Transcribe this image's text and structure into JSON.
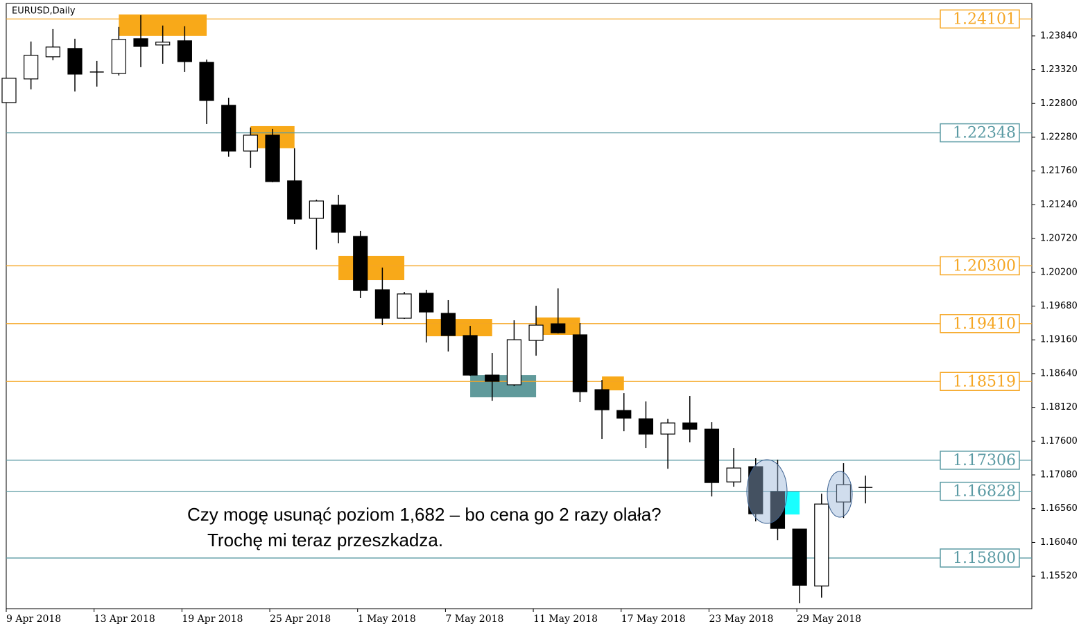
{
  "chart_data": {
    "type": "candlestick",
    "title": "EURUSD,Daily",
    "categories": [
      "9 Apr 2018",
      null,
      null,
      null,
      "13 Apr 2018",
      null,
      null,
      null,
      "19 Apr 2018",
      null,
      null,
      null,
      "25 Apr 2018",
      null,
      null,
      null,
      "1 May 2018",
      null,
      null,
      null,
      "7 May 2018",
      null,
      null,
      null,
      "11 May 2018",
      null,
      null,
      null,
      "17 May 2018",
      null,
      null,
      null,
      "23 May 2018",
      null,
      null,
      null,
      "29 May 2018",
      null,
      null,
      null
    ],
    "open": [
      1.22814,
      1.23178,
      1.23519,
      1.23647,
      1.23284,
      1.23263,
      1.23797,
      1.23701,
      1.23765,
      1.23434,
      1.22772,
      1.22067,
      1.22312,
      1.21608,
      1.21031,
      1.21234,
      1.20753,
      1.19931,
      1.19493,
      1.19877,
      1.19568,
      1.19226,
      1.18617,
      1.18468,
      1.19151,
      1.19407,
      1.19237,
      1.18393,
      1.18072,
      1.17944,
      1.17709,
      1.1788,
      1.17784,
      1.16972,
      1.17207,
      1.16823,
      1.16246,
      1.1537,
      1.16663,
      1.16887
    ],
    "high": [
      1.23188,
      1.23754,
      1.23946,
      1.23797,
      1.23455,
      1.23979,
      1.2416,
      1.24,
      1.23989,
      1.23477,
      1.22889,
      1.2243,
      1.22409,
      1.2211,
      1.21319,
      1.21394,
      1.20839,
      1.20273,
      1.19899,
      1.19931,
      1.19771,
      1.19375,
      1.18959,
      1.19461,
      1.19685,
      1.19952,
      1.19418,
      1.18542,
      1.18339,
      1.18211,
      1.17944,
      1.18297,
      1.17891,
      1.17496,
      1.17336,
      1.17314,
      1.16246,
      1.16791,
      1.17261,
      1.17069
    ],
    "low": [
      1.22814,
      1.23017,
      1.23466,
      1.22985,
      1.2306,
      1.23231,
      1.23359,
      1.23412,
      1.23284,
      1.22483,
      1.21981,
      1.2181,
      1.21586,
      1.20945,
      1.2055,
      1.20646,
      1.19803,
      1.19386,
      1.19482,
      1.19119,
      1.1898,
      1.18606,
      1.18222,
      1.18446,
      1.18916,
      1.19258,
      1.18201,
      1.17635,
      1.17752,
      1.17496,
      1.17175,
      1.17581,
      1.16748,
      1.16898,
      1.16364,
      1.16075,
      1.15103,
      1.15189,
      1.16417,
      1.16641
    ],
    "close": [
      1.23188,
      1.23541,
      1.23669,
      1.23252,
      1.23284,
      1.23786,
      1.23679,
      1.23744,
      1.23445,
      1.22846,
      1.22067,
      1.22312,
      1.21597,
      1.2102,
      1.21298,
      1.20817,
      1.1992,
      1.19493,
      1.19867,
      1.19589,
      1.19226,
      1.18617,
      1.18521,
      1.19162,
      1.19386,
      1.19269,
      1.18361,
      1.18083,
      1.17955,
      1.17709,
      1.1788,
      1.17784,
      1.16962,
      1.17186,
      1.16481,
      1.16257,
      1.15381,
      1.16631,
      1.1693,
      1.16887
    ],
    "up_color": "#ffffff",
    "down_color": "#000000",
    "ylim": [
      1.1502,
      1.2434
    ],
    "yticks": [
      {
        "value": 1.1552,
        "label": "1.15520"
      },
      {
        "value": 1.1604,
        "label": "1.16040"
      },
      {
        "value": 1.1656,
        "label": "1.16560"
      },
      {
        "value": 1.1708,
        "label": "1.17080"
      },
      {
        "value": 1.176,
        "label": "1.17600"
      },
      {
        "value": 1.1812,
        "label": "1.18120"
      },
      {
        "value": 1.1864,
        "label": "1.18640"
      },
      {
        "value": 1.1916,
        "label": "1.19160"
      },
      {
        "value": 1.1968,
        "label": "1.19680"
      },
      {
        "value": 1.202,
        "label": "1.20200"
      },
      {
        "value": 1.2072,
        "label": "1.20720"
      },
      {
        "value": 1.2124,
        "label": "1.21240"
      },
      {
        "value": 1.2176,
        "label": "1.21760"
      },
      {
        "value": 1.2228,
        "label": "1.22280"
      },
      {
        "value": 1.228,
        "label": "1.22800"
      },
      {
        "value": 1.2332,
        "label": "1.23320"
      },
      {
        "value": 1.2384,
        "label": "1.23840"
      }
    ],
    "levels": [
      {
        "value": 1.24101,
        "label": "1.24101",
        "color": "#f5a623"
      },
      {
        "value": 1.22348,
        "label": "1.22348",
        "color": "#5a9aa3"
      },
      {
        "value": 1.203,
        "label": "1.20300",
        "color": "#f5a623"
      },
      {
        "value": 1.1941,
        "label": "1.19410",
        "color": "#f5a623"
      },
      {
        "value": 1.18519,
        "label": "1.18519",
        "color": "#f5a623"
      },
      {
        "value": 1.17306,
        "label": "1.17306",
        "color": "#5a9aa3"
      },
      {
        "value": 1.16828,
        "label": "1.16828",
        "color": "#5a9aa3"
      },
      {
        "value": 1.158,
        "label": "1.15800",
        "color": "#5a9aa3"
      }
    ],
    "zones": [
      {
        "from": 5,
        "to": 9,
        "top": 1.24171,
        "bottom": 1.2384,
        "color": "#f7a000"
      },
      {
        "from": 11,
        "to": 13,
        "top": 1.22451,
        "bottom": 1.2211,
        "color": "#f7a000"
      },
      {
        "from": 15,
        "to": 18,
        "top": 1.20454,
        "bottom": 1.2008,
        "color": "#f7a000"
      },
      {
        "from": 19,
        "to": 22,
        "top": 1.19482,
        "bottom": 1.19215,
        "color": "#f7a000"
      },
      {
        "from": 21,
        "to": 24,
        "top": 1.18617,
        "bottom": 1.18275,
        "color": "#4f8f90"
      },
      {
        "from": 24,
        "to": 26,
        "top": 1.19504,
        "bottom": 1.19237,
        "color": "#f7a000"
      },
      {
        "from": 27,
        "to": 28,
        "top": 1.18596,
        "bottom": 1.18382,
        "color": "#f7a000"
      },
      {
        "from": 35,
        "to": 36,
        "top": 1.16823,
        "bottom": 1.1647,
        "color": "#00ffff"
      }
    ],
    "annotations": [
      "Czy mogę usunąć poziom 1,682 – bo cena go 2 razy olała?",
      "Trochę mi teraz przeszkadza."
    ]
  }
}
